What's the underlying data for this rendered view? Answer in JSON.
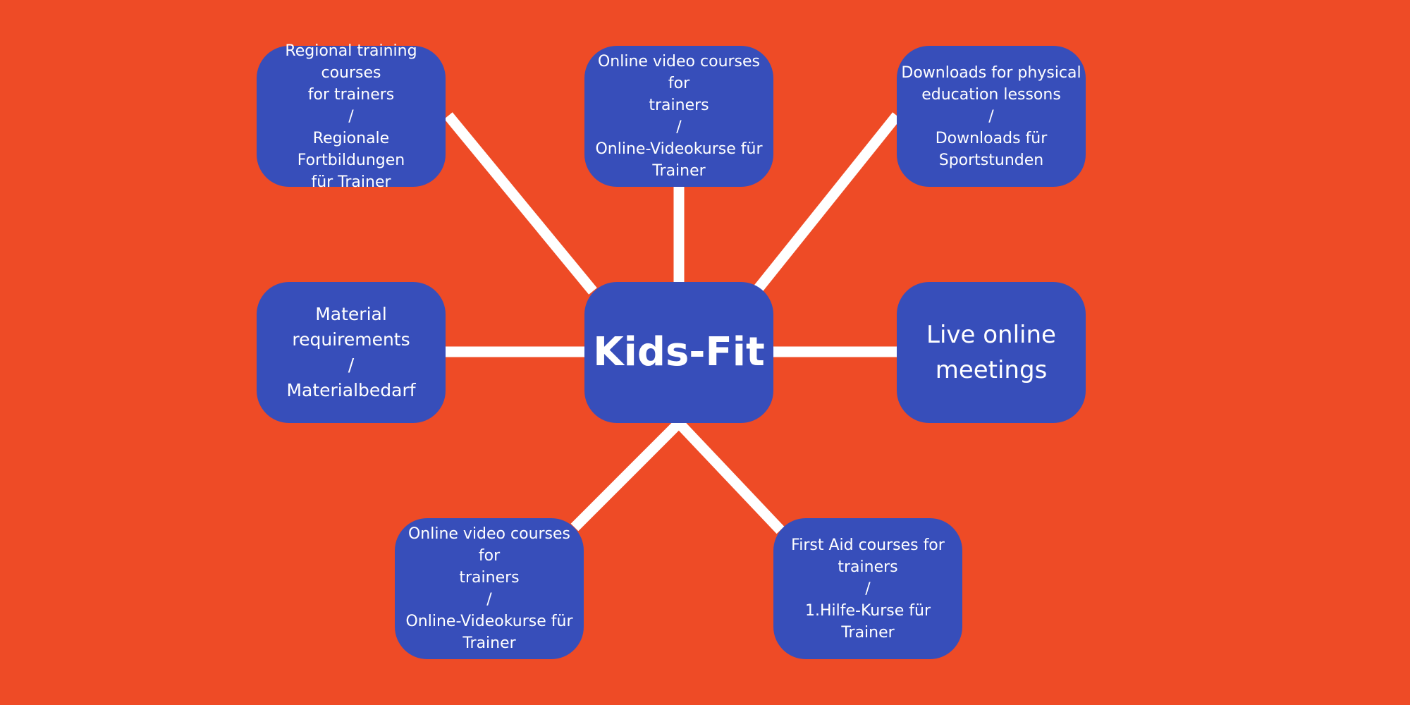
{
  "diagram": {
    "colors": {
      "background": "#EE4B26",
      "node": "#374EBA",
      "connector": "#FFFFFF",
      "text": "#FFFFFF"
    },
    "center": {
      "label": "Kids-Fit"
    },
    "nodes": [
      {
        "id": "tl",
        "label": "Regional training courses\nfor trainers\n/\nRegionale Fortbildungen\nfür Trainer"
      },
      {
        "id": "tc",
        "label": "Online video courses for\ntrainers\n/\nOnline-Videokurse für\nTrainer"
      },
      {
        "id": "tr",
        "label": "Downloads for physical\neducation lessons\n/\nDownloads für\nSportstunden"
      },
      {
        "id": "ml",
        "label": "Material\nrequirements\n/\nMaterialbedarf"
      },
      {
        "id": "mr",
        "label": "Live online\nmeetings"
      },
      {
        "id": "bl",
        "label": "Online video courses for\ntrainers\n/\nOnline-Videokurse für\nTrainer"
      },
      {
        "id": "br",
        "label": "First Aid courses for\ntrainers\n/\n1.Hilfe-Kurse für Trainer"
      }
    ]
  }
}
